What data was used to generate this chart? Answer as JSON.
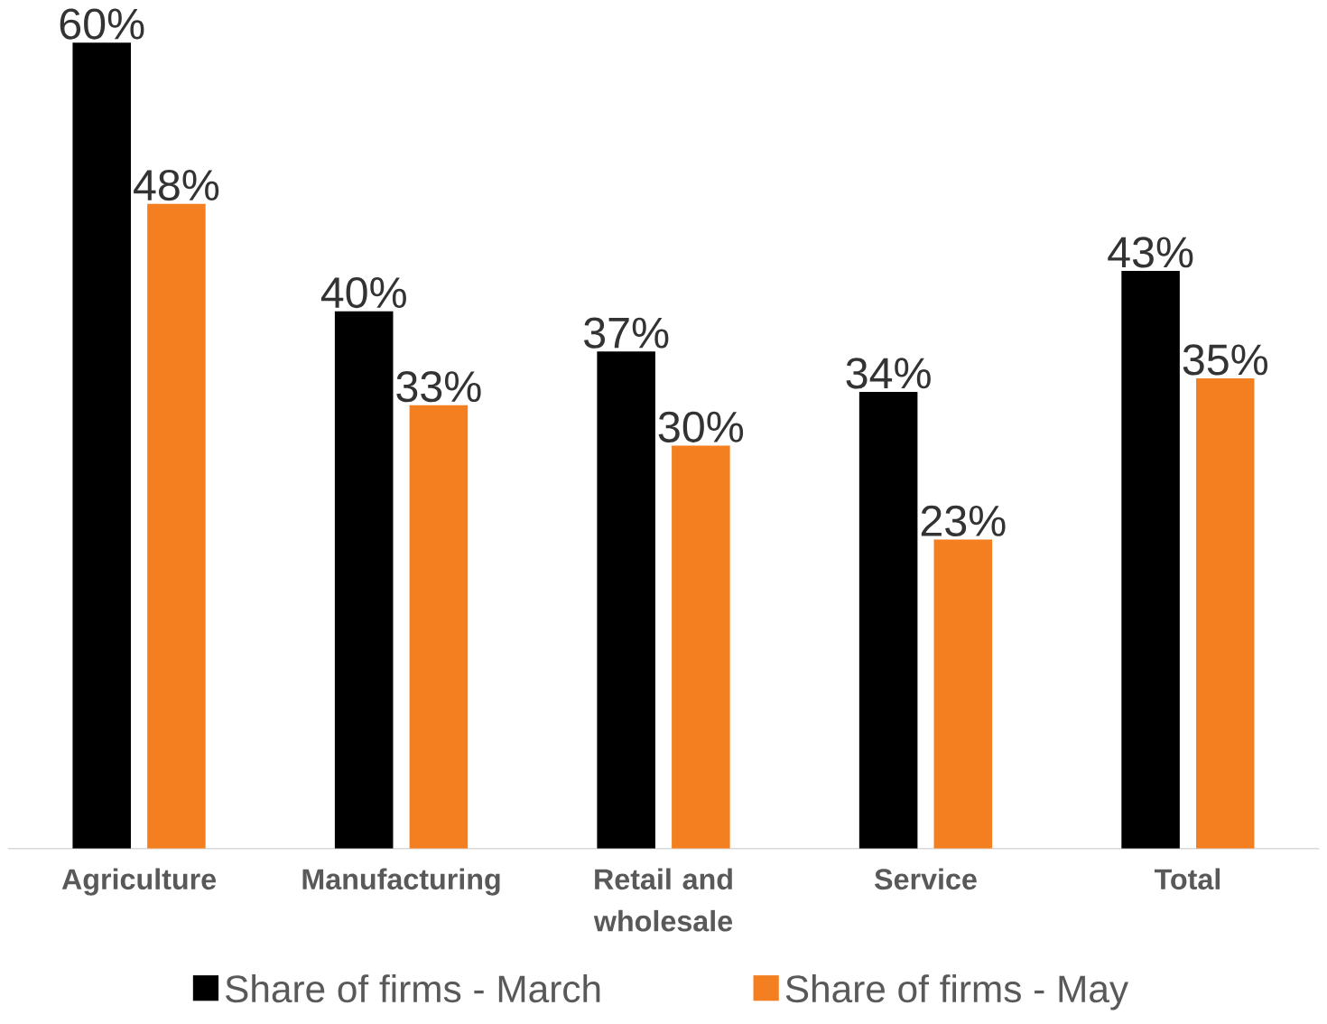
{
  "chart_data": {
    "type": "bar",
    "categories": [
      "Agriculture",
      "Manufacturing",
      "Retail and wholesale",
      "Service",
      "Total"
    ],
    "series": [
      {
        "name": "Share of firms - March",
        "color": "#000000",
        "values": [
          60,
          40,
          37,
          34,
          43
        ],
        "value_labels": [
          "60%",
          "40%",
          "37%",
          "34%",
          "43%"
        ]
      },
      {
        "name": "Share of firms - May",
        "color": "#f47f20",
        "values": [
          48,
          33,
          30,
          23,
          35
        ],
        "value_labels": [
          "48%",
          "33%",
          "30%",
          "23%",
          "35%"
        ]
      }
    ],
    "legend": "bottom"
  }
}
